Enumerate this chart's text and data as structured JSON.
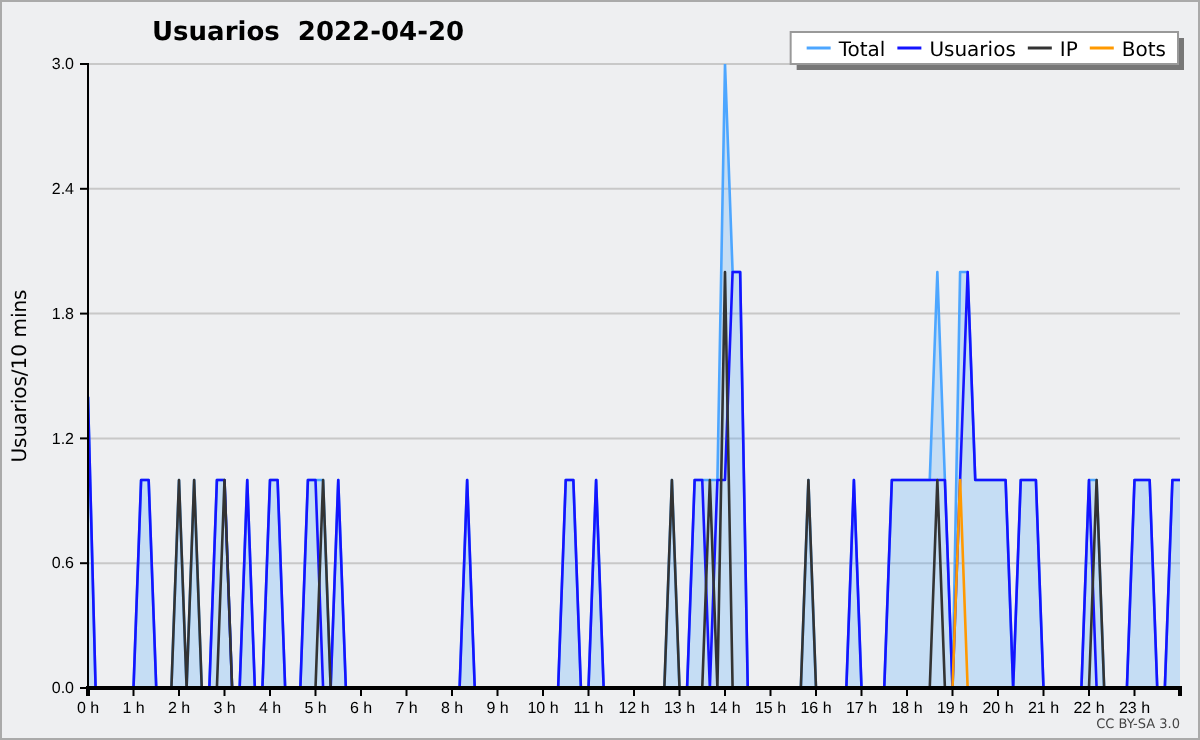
{
  "chart_data": {
    "type": "line",
    "title": "Usuarios  2022-04-20",
    "ylabel": "Usuarios/10 mins",
    "annotations": [
      "CC BY-SA 3.0"
    ],
    "x": [
      0,
      0.167,
      0.333,
      0.5,
      0.667,
      0.833,
      1,
      1.167,
      1.333,
      1.5,
      1.667,
      1.833,
      2,
      2.167,
      2.333,
      2.5,
      2.667,
      2.833,
      3,
      3.167,
      3.333,
      3.5,
      3.667,
      3.833,
      4,
      4.167,
      4.333,
      4.5,
      4.667,
      4.833,
      5,
      5.167,
      5.333,
      5.5,
      5.667,
      5.833,
      6,
      6.167,
      6.333,
      6.5,
      6.667,
      6.833,
      7,
      7.167,
      7.333,
      7.5,
      7.667,
      7.833,
      8,
      8.167,
      8.333,
      8.5,
      8.667,
      8.833,
      9,
      9.167,
      9.333,
      9.5,
      9.667,
      9.833,
      10,
      10.167,
      10.333,
      10.5,
      10.667,
      10.833,
      11,
      11.167,
      11.333,
      11.5,
      11.667,
      11.833,
      12,
      12.167,
      12.333,
      12.5,
      12.667,
      12.833,
      13,
      13.167,
      13.333,
      13.5,
      13.667,
      13.833,
      14,
      14.167,
      14.333,
      14.5,
      14.667,
      14.833,
      15,
      15.167,
      15.333,
      15.5,
      15.667,
      15.833,
      16,
      16.167,
      16.333,
      16.5,
      16.667,
      16.833,
      17,
      17.167,
      17.333,
      17.5,
      17.667,
      17.833,
      18,
      18.167,
      18.333,
      18.5,
      18.667,
      18.833,
      19,
      19.167,
      19.333,
      19.5,
      19.667,
      19.833,
      20,
      20.167,
      20.333,
      20.5,
      20.667,
      20.833,
      21,
      21.167,
      21.333,
      21.5,
      21.667,
      21.833,
      22,
      22.167,
      22.333,
      22.5,
      22.667,
      22.833,
      23,
      23.167,
      23.333,
      23.5,
      23.667,
      23.833,
      24
    ],
    "series": [
      {
        "name": "Total",
        "type": "area",
        "color": "#4da6ff",
        "values": [
          1.4,
          0,
          0,
          0,
          0,
          0,
          0,
          1,
          1,
          0,
          0,
          0,
          1,
          0,
          1,
          0,
          0,
          1,
          1,
          0,
          0,
          1,
          0,
          0,
          1,
          1,
          0,
          0,
          0,
          1,
          1,
          1,
          0,
          1,
          0,
          0,
          0,
          0,
          0,
          0,
          0,
          0,
          0,
          0,
          0,
          0,
          0,
          0,
          0,
          0,
          1,
          0,
          0,
          0,
          0,
          0,
          0,
          0,
          0,
          0,
          0,
          0,
          0,
          1,
          1,
          0,
          0,
          1,
          0,
          0,
          0,
          0,
          0,
          0,
          0,
          0,
          0,
          1,
          0,
          0,
          1,
          1,
          1,
          1,
          3,
          2,
          2,
          0,
          0,
          0,
          0,
          0,
          0,
          0,
          0,
          1,
          0,
          0,
          0,
          0,
          0,
          1,
          0,
          0,
          0,
          0,
          1,
          1,
          1,
          1,
          1,
          1,
          2,
          1,
          0,
          2,
          2,
          1,
          1,
          1,
          1,
          1,
          0,
          1,
          1,
          1,
          0,
          0,
          0,
          0,
          0,
          0,
          1,
          1,
          0,
          0,
          0,
          0,
          1,
          1,
          1,
          0,
          0,
          1,
          1
        ]
      },
      {
        "name": "Usuarios",
        "type": "line",
        "color": "#1414ff",
        "values": [
          1.4,
          0,
          0,
          0,
          0,
          0,
          0,
          1,
          1,
          0,
          0,
          0,
          0,
          0,
          0,
          0,
          0,
          1,
          1,
          0,
          0,
          1,
          0,
          0,
          1,
          1,
          0,
          0,
          0,
          1,
          1,
          0,
          0,
          1,
          0,
          0,
          0,
          0,
          0,
          0,
          0,
          0,
          0,
          0,
          0,
          0,
          0,
          0,
          0,
          0,
          1,
          0,
          0,
          0,
          0,
          0,
          0,
          0,
          0,
          0,
          0,
          0,
          0,
          1,
          1,
          0,
          0,
          1,
          0,
          0,
          0,
          0,
          0,
          0,
          0,
          0,
          0,
          0,
          0,
          0,
          1,
          1,
          0,
          1,
          1,
          2,
          2,
          0,
          0,
          0,
          0,
          0,
          0,
          0,
          0,
          0,
          0,
          0,
          0,
          0,
          0,
          1,
          0,
          0,
          0,
          0,
          1,
          1,
          1,
          1,
          1,
          1,
          1,
          1,
          0,
          1,
          2,
          1,
          1,
          1,
          1,
          1,
          0,
          1,
          1,
          1,
          0,
          0,
          0,
          0,
          0,
          0,
          1,
          0,
          0,
          0,
          0,
          0,
          1,
          1,
          1,
          0,
          0,
          1,
          1
        ]
      },
      {
        "name": "IP",
        "type": "line",
        "color": "#333333",
        "values": [
          0,
          0,
          0,
          0,
          0,
          0,
          0,
          0,
          0,
          0,
          0,
          0,
          1,
          0,
          1,
          0,
          0,
          0,
          1,
          0,
          0,
          0,
          0,
          0,
          0,
          0,
          0,
          0,
          0,
          0,
          0,
          1,
          0,
          0,
          0,
          0,
          0,
          0,
          0,
          0,
          0,
          0,
          0,
          0,
          0,
          0,
          0,
          0,
          0,
          0,
          0,
          0,
          0,
          0,
          0,
          0,
          0,
          0,
          0,
          0,
          0,
          0,
          0,
          0,
          0,
          0,
          0,
          0,
          0,
          0,
          0,
          0,
          0,
          0,
          0,
          0,
          0,
          1,
          0,
          0,
          0,
          0,
          1,
          0,
          2,
          0,
          0,
          0,
          0,
          0,
          0,
          0,
          0,
          0,
          0,
          1,
          0,
          0,
          0,
          0,
          0,
          0,
          0,
          0,
          0,
          0,
          0,
          0,
          0,
          0,
          0,
          0,
          1,
          0,
          0,
          0,
          0,
          0,
          0,
          0,
          0,
          0,
          0,
          0,
          0,
          0,
          0,
          0,
          0,
          0,
          0,
          0,
          0,
          1,
          0,
          0,
          0,
          0,
          0,
          0,
          0,
          0,
          0,
          0,
          0
        ]
      },
      {
        "name": "Bots",
        "type": "line",
        "color": "#ff9900",
        "values": [
          null,
          null,
          null,
          null,
          null,
          null,
          null,
          null,
          null,
          null,
          null,
          null,
          null,
          null,
          null,
          null,
          null,
          null,
          null,
          null,
          null,
          null,
          null,
          null,
          null,
          null,
          null,
          null,
          null,
          null,
          null,
          null,
          null,
          null,
          null,
          null,
          null,
          null,
          null,
          null,
          null,
          null,
          null,
          null,
          null,
          null,
          null,
          null,
          null,
          null,
          null,
          null,
          null,
          null,
          null,
          null,
          null,
          null,
          null,
          null,
          null,
          null,
          null,
          null,
          null,
          null,
          null,
          null,
          null,
          null,
          null,
          null,
          null,
          null,
          null,
          null,
          null,
          null,
          null,
          null,
          null,
          null,
          null,
          null,
          null,
          null,
          null,
          null,
          null,
          null,
          null,
          null,
          null,
          null,
          null,
          null,
          null,
          null,
          null,
          null,
          null,
          null,
          null,
          null,
          null,
          null,
          null,
          null,
          null,
          null,
          null,
          null,
          null,
          null,
          0,
          1,
          0,
          null,
          null,
          null,
          null,
          null,
          null,
          null,
          null,
          null,
          null,
          null,
          null,
          null,
          null,
          null,
          null,
          null,
          null,
          null,
          null,
          null,
          null,
          null,
          null,
          null,
          null,
          null,
          null
        ]
      }
    ],
    "xlim": [
      0,
      24
    ],
    "xticks": [
      {
        "value": 0,
        "label": "0 h"
      },
      {
        "value": 1,
        "label": "1 h"
      },
      {
        "value": 2,
        "label": "2 h"
      },
      {
        "value": 3,
        "label": "3 h"
      },
      {
        "value": 4,
        "label": "4 h"
      },
      {
        "value": 5,
        "label": "5 h"
      },
      {
        "value": 6,
        "label": "6 h"
      },
      {
        "value": 7,
        "label": "7 h"
      },
      {
        "value": 8,
        "label": "8 h"
      },
      {
        "value": 9,
        "label": "9 h"
      },
      {
        "value": 10,
        "label": "10 h"
      },
      {
        "value": 11,
        "label": "11 h"
      },
      {
        "value": 12,
        "label": "12 h"
      },
      {
        "value": 13,
        "label": "13 h"
      },
      {
        "value": 14,
        "label": "14 h"
      },
      {
        "value": 15,
        "label": "15 h"
      },
      {
        "value": 16,
        "label": "16 h"
      },
      {
        "value": 17,
        "label": "17 h"
      },
      {
        "value": 18,
        "label": "18 h"
      },
      {
        "value": 19,
        "label": "19 h"
      },
      {
        "value": 20,
        "label": "20 h"
      },
      {
        "value": 21,
        "label": "21 h"
      },
      {
        "value": 22,
        "label": "22 h"
      },
      {
        "value": 23,
        "label": "23 h"
      }
    ],
    "ylim": [
      0,
      3
    ],
    "yticks": [
      {
        "value": 0,
        "label": "0.0"
      },
      {
        "value": 0.6,
        "label": "0.6"
      },
      {
        "value": 1.2,
        "label": "1.2"
      },
      {
        "value": 1.8,
        "label": "1.8"
      },
      {
        "value": 2.4,
        "label": "2.4"
      },
      {
        "value": 3,
        "label": "3.0"
      }
    ],
    "grid": "y",
    "legend": "top right",
    "marker": "none",
    "line_style": "solid"
  }
}
